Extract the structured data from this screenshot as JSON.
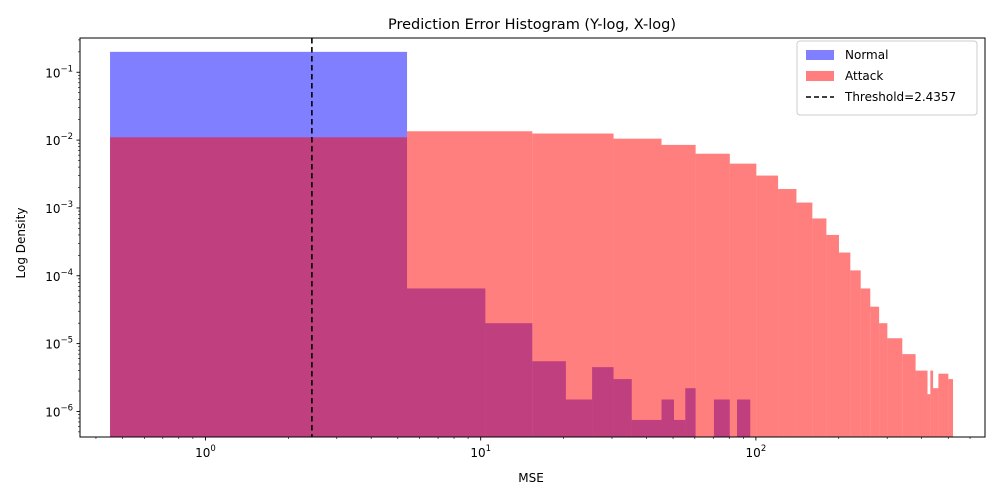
{
  "chart_data": {
    "type": "histogram",
    "title": "Prediction Error Histogram (Y-log, X-log)",
    "xlabel": "MSE",
    "ylabel": "Log Density",
    "xscale": "log",
    "yscale": "log",
    "xlim": [
      0.35,
      680
    ],
    "ylim": [
      4.2e-07,
      0.32
    ],
    "x_ticks": [
      {
        "value": 1,
        "base": "10",
        "exp": "0"
      },
      {
        "value": 10,
        "base": "10",
        "exp": "1"
      },
      {
        "value": 100,
        "base": "10",
        "exp": "2"
      }
    ],
    "y_ticks": [
      {
        "value": 1e-06,
        "base": "10",
        "exp": "−6"
      },
      {
        "value": 1e-05,
        "base": "10",
        "exp": "−5"
      },
      {
        "value": 0.0001,
        "base": "10",
        "exp": "−4"
      },
      {
        "value": 0.001,
        "base": "10",
        "exp": "−3"
      },
      {
        "value": 0.01,
        "base": "10",
        "exp": "−2"
      },
      {
        "value": 0.1,
        "base": "10",
        "exp": "−1"
      }
    ],
    "legend_position": "top-right",
    "threshold": {
      "value": 2.4357,
      "label": "Threshold=2.4357",
      "color": "#000000",
      "style": "dashed"
    },
    "series": [
      {
        "name": "Normal",
        "color": "#0000ff",
        "opacity": 0.5,
        "bins": [
          {
            "x0": 0.45,
            "x1": 5.4,
            "density": 0.2
          },
          {
            "x0": 5.4,
            "x1": 10.4,
            "density": 6.5e-05
          },
          {
            "x0": 10.4,
            "x1": 15.4,
            "density": 2e-05
          },
          {
            "x0": 15.4,
            "x1": 20.4,
            "density": 5.5e-06
          },
          {
            "x0": 20.4,
            "x1": 25.4,
            "density": 1.5e-06
          },
          {
            "x0": 25.4,
            "x1": 30.4,
            "density": 4.5e-06
          },
          {
            "x0": 30.4,
            "x1": 35.4,
            "density": 3e-06
          },
          {
            "x0": 35.4,
            "x1": 45.4,
            "density": 7.5e-07
          },
          {
            "x0": 45.4,
            "x1": 50.4,
            "density": 1.5e-06
          },
          {
            "x0": 50.4,
            "x1": 55.4,
            "density": 7.5e-07
          },
          {
            "x0": 55.4,
            "x1": 60.4,
            "density": 2.2e-06
          },
          {
            "x0": 70.4,
            "x1": 80.4,
            "density": 1.5e-06
          },
          {
            "x0": 85.4,
            "x1": 95.4,
            "density": 1.5e-06
          }
        ]
      },
      {
        "name": "Attack",
        "color": "#ff0000",
        "opacity": 0.5,
        "bins": [
          {
            "x0": 0.45,
            "x1": 5.4,
            "density": 0.011
          },
          {
            "x0": 5.4,
            "x1": 15.4,
            "density": 0.0135
          },
          {
            "x0": 15.4,
            "x1": 30.4,
            "density": 0.0125
          },
          {
            "x0": 30.4,
            "x1": 45.4,
            "density": 0.0105
          },
          {
            "x0": 45.4,
            "x1": 60.4,
            "density": 0.0085
          },
          {
            "x0": 60.4,
            "x1": 80.4,
            "density": 0.0063
          },
          {
            "x0": 80.4,
            "x1": 100.4,
            "density": 0.0045
          },
          {
            "x0": 100.4,
            "x1": 120.4,
            "density": 0.003
          },
          {
            "x0": 120.4,
            "x1": 140.4,
            "density": 0.0019
          },
          {
            "x0": 140.4,
            "x1": 160.4,
            "density": 0.0012
          },
          {
            "x0": 160.4,
            "x1": 180.4,
            "density": 0.0007
          },
          {
            "x0": 180.4,
            "x1": 200.4,
            "density": 0.0004
          },
          {
            "x0": 200.4,
            "x1": 220.4,
            "density": 0.00022
          },
          {
            "x0": 220.4,
            "x1": 240.4,
            "density": 0.00012
          },
          {
            "x0": 240.4,
            "x1": 260.4,
            "density": 6.5e-05
          },
          {
            "x0": 260.4,
            "x1": 280.4,
            "density": 3.5e-05
          },
          {
            "x0": 280.4,
            "x1": 300.4,
            "density": 2e-05
          },
          {
            "x0": 300.4,
            "x1": 340.4,
            "density": 1.2e-05
          },
          {
            "x0": 340.4,
            "x1": 380.4,
            "density": 7e-06
          },
          {
            "x0": 380.4,
            "x1": 420.4,
            "density": 4e-06
          },
          {
            "x0": 420.4,
            "x1": 430.4,
            "density": 1.8e-06
          },
          {
            "x0": 430.4,
            "x1": 440.4,
            "density": 4e-06
          },
          {
            "x0": 440.4,
            "x1": 460.4,
            "density": 2.2e-06
          },
          {
            "x0": 460.4,
            "x1": 500.4,
            "density": 3.6e-06
          },
          {
            "x0": 500.4,
            "x1": 520.4,
            "density": 3e-06
          }
        ]
      }
    ]
  }
}
